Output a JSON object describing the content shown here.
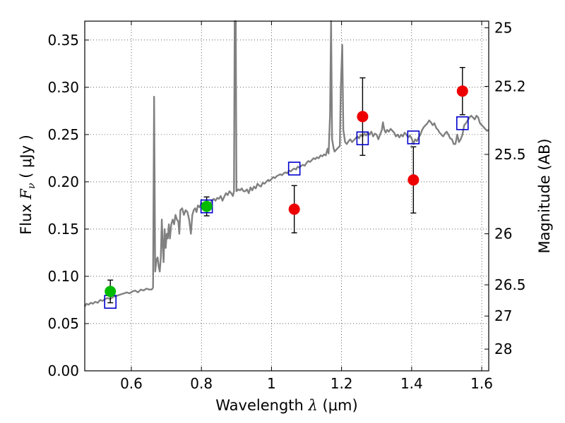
{
  "chart_data": {
    "type": "scatter",
    "title": "",
    "xlabel": {
      "prefix": "Wavelength  ",
      "symbol": "λ",
      "units": " (μm)"
    },
    "ylabel": {
      "prefix": "Flux  ",
      "symbol": "F",
      "subscript": "ν",
      "units": "  ( μJy )"
    },
    "ylabel_right": "Magnitude (AB)",
    "xlim": [
      0.467,
      1.62
    ],
    "ylim": [
      0.0,
      0.37
    ],
    "grid": true,
    "x_ticks": [
      {
        "value": 0.6,
        "label": "0.6"
      },
      {
        "value": 0.8,
        "label": "0.8"
      },
      {
        "value": 1.0,
        "label": "1"
      },
      {
        "value": 1.2,
        "label": "1.2"
      },
      {
        "value": 1.4,
        "label": "1.4"
      },
      {
        "value": 1.6,
        "label": "1.6"
      }
    ],
    "y_ticks": [
      {
        "value": 0.0,
        "label": "0.00"
      },
      {
        "value": 0.05,
        "label": "0.05"
      },
      {
        "value": 0.1,
        "label": "0.10"
      },
      {
        "value": 0.15,
        "label": "0.15"
      },
      {
        "value": 0.2,
        "label": "0.20"
      },
      {
        "value": 0.25,
        "label": "0.25"
      },
      {
        "value": 0.3,
        "label": "0.30"
      },
      {
        "value": 0.35,
        "label": "0.35"
      }
    ],
    "right_ticks": [
      {
        "flux": 0.363,
        "label": "25"
      },
      {
        "flux": 0.301,
        "label": "25.2"
      },
      {
        "flux": 0.229,
        "label": "25.5"
      },
      {
        "flux": 0.145,
        "label": "26"
      },
      {
        "flux": 0.091,
        "label": "26.5"
      },
      {
        "flux": 0.058,
        "label": "27"
      },
      {
        "flux": 0.023,
        "label": "28"
      }
    ],
    "model_spectrum": {
      "name": "model",
      "color": "#808080",
      "points": [
        [
          0.467,
          0.068
        ],
        [
          0.472,
          0.071
        ],
        [
          0.478,
          0.07
        ],
        [
          0.484,
          0.072
        ],
        [
          0.49,
          0.071
        ],
        [
          0.497,
          0.073
        ],
        [
          0.504,
          0.072
        ],
        [
          0.511,
          0.075
        ],
        [
          0.518,
          0.074
        ],
        [
          0.525,
          0.076
        ],
        [
          0.532,
          0.077
        ],
        [
          0.54,
          0.076
        ],
        [
          0.547,
          0.078
        ],
        [
          0.555,
          0.079
        ],
        [
          0.563,
          0.08
        ],
        [
          0.571,
          0.081
        ],
        [
          0.579,
          0.082
        ],
        [
          0.587,
          0.083
        ],
        [
          0.595,
          0.082
        ],
        [
          0.603,
          0.084
        ],
        [
          0.611,
          0.085
        ],
        [
          0.619,
          0.083
        ],
        [
          0.627,
          0.086
        ],
        [
          0.635,
          0.085
        ],
        [
          0.643,
          0.087
        ],
        [
          0.651,
          0.086
        ],
        [
          0.658,
          0.086
        ],
        [
          0.662,
          0.088
        ],
        [
          0.665,
          0.29
        ],
        [
          0.668,
          0.105
        ],
        [
          0.672,
          0.118
        ],
        [
          0.675,
          0.12
        ],
        [
          0.678,
          0.11
        ],
        [
          0.681,
          0.105
        ],
        [
          0.684,
          0.12
        ],
        [
          0.687,
          0.16
        ],
        [
          0.69,
          0.13
        ],
        [
          0.692,
          0.115
        ],
        [
          0.695,
          0.15
        ],
        [
          0.698,
          0.13
        ],
        [
          0.701,
          0.145
        ],
        [
          0.704,
          0.14
        ],
        [
          0.707,
          0.155
        ],
        [
          0.71,
          0.14
        ],
        [
          0.714,
          0.155
        ],
        [
          0.718,
          0.16
        ],
        [
          0.722,
          0.155
        ],
        [
          0.726,
          0.165
        ],
        [
          0.73,
          0.16
        ],
        [
          0.734,
          0.158
        ],
        [
          0.737,
          0.145
        ],
        [
          0.74,
          0.17
        ],
        [
          0.745,
          0.172
        ],
        [
          0.75,
          0.165
        ],
        [
          0.755,
          0.17
        ],
        [
          0.76,
          0.168
        ],
        [
          0.765,
          0.16
        ],
        [
          0.77,
          0.145
        ],
        [
          0.774,
          0.165
        ],
        [
          0.778,
          0.17
        ],
        [
          0.782,
          0.172
        ],
        [
          0.786,
          0.168
        ],
        [
          0.79,
          0.175
        ],
        [
          0.795,
          0.173
        ],
        [
          0.8,
          0.178
        ],
        [
          0.805,
          0.176
        ],
        [
          0.81,
          0.175
        ],
        [
          0.815,
          0.172
        ],
        [
          0.82,
          0.174
        ],
        [
          0.825,
          0.177
        ],
        [
          0.83,
          0.18
        ],
        [
          0.835,
          0.182
        ],
        [
          0.84,
          0.18
        ],
        [
          0.845,
          0.183
        ],
        [
          0.85,
          0.182
        ],
        [
          0.855,
          0.185
        ],
        [
          0.86,
          0.18
        ],
        [
          0.865,
          0.184
        ],
        [
          0.87,
          0.188
        ],
        [
          0.875,
          0.186
        ],
        [
          0.88,
          0.19
        ],
        [
          0.885,
          0.188
        ],
        [
          0.89,
          0.185
        ],
        [
          0.893,
          0.19
        ],
        [
          0.895,
          0.37
        ],
        [
          0.898,
          0.37
        ],
        [
          0.9,
          0.19
        ],
        [
          0.905,
          0.192
        ],
        [
          0.91,
          0.191
        ],
        [
          0.915,
          0.193
        ],
        [
          0.92,
          0.19
        ],
        [
          0.925,
          0.19
        ],
        [
          0.93,
          0.192
        ],
        [
          0.935,
          0.188
        ],
        [
          0.94,
          0.194
        ],
        [
          0.945,
          0.191
        ],
        [
          0.95,
          0.195
        ],
        [
          0.955,
          0.193
        ],
        [
          0.96,
          0.198
        ],
        [
          0.965,
          0.196
        ],
        [
          0.97,
          0.195
        ],
        [
          0.975,
          0.199
        ],
        [
          0.98,
          0.198
        ],
        [
          0.985,
          0.2
        ],
        [
          0.99,
          0.202
        ],
        [
          0.995,
          0.201
        ],
        [
          1.0,
          0.203
        ],
        [
          1.005,
          0.205
        ],
        [
          1.01,
          0.204
        ],
        [
          1.015,
          0.206
        ],
        [
          1.02,
          0.207
        ],
        [
          1.025,
          0.208
        ],
        [
          1.03,
          0.207
        ],
        [
          1.035,
          0.209
        ],
        [
          1.04,
          0.21
        ],
        [
          1.045,
          0.209
        ],
        [
          1.05,
          0.212
        ],
        [
          1.055,
          0.211
        ],
        [
          1.06,
          0.213
        ],
        [
          1.065,
          0.214
        ],
        [
          1.07,
          0.213
        ],
        [
          1.075,
          0.216
        ],
        [
          1.08,
          0.215
        ],
        [
          1.085,
          0.217
        ],
        [
          1.09,
          0.218
        ],
        [
          1.095,
          0.217
        ],
        [
          1.1,
          0.22
        ],
        [
          1.105,
          0.222
        ],
        [
          1.11,
          0.221
        ],
        [
          1.115,
          0.223
        ],
        [
          1.12,
          0.225
        ],
        [
          1.125,
          0.224
        ],
        [
          1.13,
          0.226
        ],
        [
          1.135,
          0.225
        ],
        [
          1.14,
          0.228
        ],
        [
          1.145,
          0.227
        ],
        [
          1.15,
          0.229
        ],
        [
          1.155,
          0.228
        ],
        [
          1.16,
          0.235
        ],
        [
          1.163,
          0.23
        ],
        [
          1.167,
          0.27
        ],
        [
          1.17,
          0.37
        ],
        [
          1.173,
          0.245
        ],
        [
          1.177,
          0.236
        ],
        [
          1.18,
          0.232
        ],
        [
          1.185,
          0.234
        ],
        [
          1.19,
          0.236
        ],
        [
          1.195,
          0.238
        ],
        [
          1.198,
          0.3
        ],
        [
          1.202,
          0.345
        ],
        [
          1.205,
          0.255
        ],
        [
          1.21,
          0.242
        ],
        [
          1.215,
          0.24
        ],
        [
          1.22,
          0.243
        ],
        [
          1.225,
          0.245
        ],
        [
          1.23,
          0.242
        ],
        [
          1.235,
          0.244
        ],
        [
          1.24,
          0.246
        ],
        [
          1.245,
          0.248
        ],
        [
          1.25,
          0.246
        ],
        [
          1.255,
          0.25
        ],
        [
          1.26,
          0.248
        ],
        [
          1.265,
          0.251
        ],
        [
          1.27,
          0.249
        ],
        [
          1.275,
          0.252
        ],
        [
          1.28,
          0.25
        ],
        [
          1.285,
          0.253
        ],
        [
          1.29,
          0.248
        ],
        [
          1.295,
          0.251
        ],
        [
          1.3,
          0.25
        ],
        [
          1.305,
          0.245
        ],
        [
          1.31,
          0.25
        ],
        [
          1.315,
          0.255
        ],
        [
          1.318,
          0.263
        ],
        [
          1.322,
          0.255
        ],
        [
          1.326,
          0.252
        ],
        [
          1.33,
          0.255
        ],
        [
          1.335,
          0.253
        ],
        [
          1.34,
          0.256
        ],
        [
          1.345,
          0.254
        ],
        [
          1.35,
          0.252
        ],
        [
          1.355,
          0.248
        ],
        [
          1.36,
          0.25
        ],
        [
          1.365,
          0.247
        ],
        [
          1.37,
          0.25
        ],
        [
          1.375,
          0.248
        ],
        [
          1.38,
          0.252
        ],
        [
          1.385,
          0.25
        ],
        [
          1.39,
          0.247
        ],
        [
          1.395,
          0.249
        ],
        [
          1.4,
          0.246
        ],
        [
          1.405,
          0.24
        ],
        [
          1.41,
          0.245
        ],
        [
          1.415,
          0.243
        ],
        [
          1.42,
          0.247
        ],
        [
          1.425,
          0.25
        ],
        [
          1.43,
          0.255
        ],
        [
          1.435,
          0.258
        ],
        [
          1.44,
          0.26
        ],
        [
          1.445,
          0.262
        ],
        [
          1.45,
          0.265
        ],
        [
          1.455,
          0.263
        ],
        [
          1.46,
          0.26
        ],
        [
          1.465,
          0.262
        ],
        [
          1.47,
          0.257
        ],
        [
          1.475,
          0.255
        ],
        [
          1.48,
          0.252
        ],
        [
          1.485,
          0.25
        ],
        [
          1.49,
          0.248
        ],
        [
          1.495,
          0.251
        ],
        [
          1.5,
          0.253
        ],
        [
          1.505,
          0.25
        ],
        [
          1.51,
          0.246
        ],
        [
          1.515,
          0.245
        ],
        [
          1.52,
          0.24
        ],
        [
          1.525,
          0.24
        ],
        [
          1.53,
          0.25
        ],
        [
          1.535,
          0.242
        ],
        [
          1.54,
          0.245
        ],
        [
          1.545,
          0.25
        ],
        [
          1.55,
          0.26
        ],
        [
          1.555,
          0.262
        ],
        [
          1.56,
          0.265
        ],
        [
          1.565,
          0.268
        ],
        [
          1.57,
          0.27
        ],
        [
          1.575,
          0.268
        ],
        [
          1.58,
          0.266
        ],
        [
          1.585,
          0.27
        ],
        [
          1.59,
          0.268
        ],
        [
          1.595,
          0.262
        ],
        [
          1.6,
          0.26
        ],
        [
          1.605,
          0.258
        ],
        [
          1.61,
          0.256
        ],
        [
          1.615,
          0.254
        ],
        [
          1.62,
          0.255
        ]
      ]
    },
    "series": [
      {
        "name": "green-photometry",
        "color": "#00bb00",
        "marker": "circle",
        "points": [
          {
            "x": 0.54,
            "y": 0.084,
            "err": 0.012
          },
          {
            "x": 0.815,
            "y": 0.174,
            "err": 0.01
          }
        ]
      },
      {
        "name": "red-photometry",
        "color": "#ee0000",
        "marker": "circle",
        "points": [
          {
            "x": 1.065,
            "y": 0.171,
            "err": 0.025
          },
          {
            "x": 1.26,
            "y": 0.269,
            "err": 0.041
          },
          {
            "x": 1.405,
            "y": 0.202,
            "err": 0.035
          },
          {
            "x": 1.545,
            "y": 0.296,
            "err": 0.025
          }
        ]
      },
      {
        "name": "model-synthetic",
        "color": "#0000cc",
        "marker": "square",
        "points": [
          {
            "x": 0.54,
            "y": 0.073
          },
          {
            "x": 0.815,
            "y": 0.174
          },
          {
            "x": 1.065,
            "y": 0.214
          },
          {
            "x": 1.26,
            "y": 0.246
          },
          {
            "x": 1.405,
            "y": 0.247
          },
          {
            "x": 1.545,
            "y": 0.262
          }
        ]
      }
    ]
  }
}
